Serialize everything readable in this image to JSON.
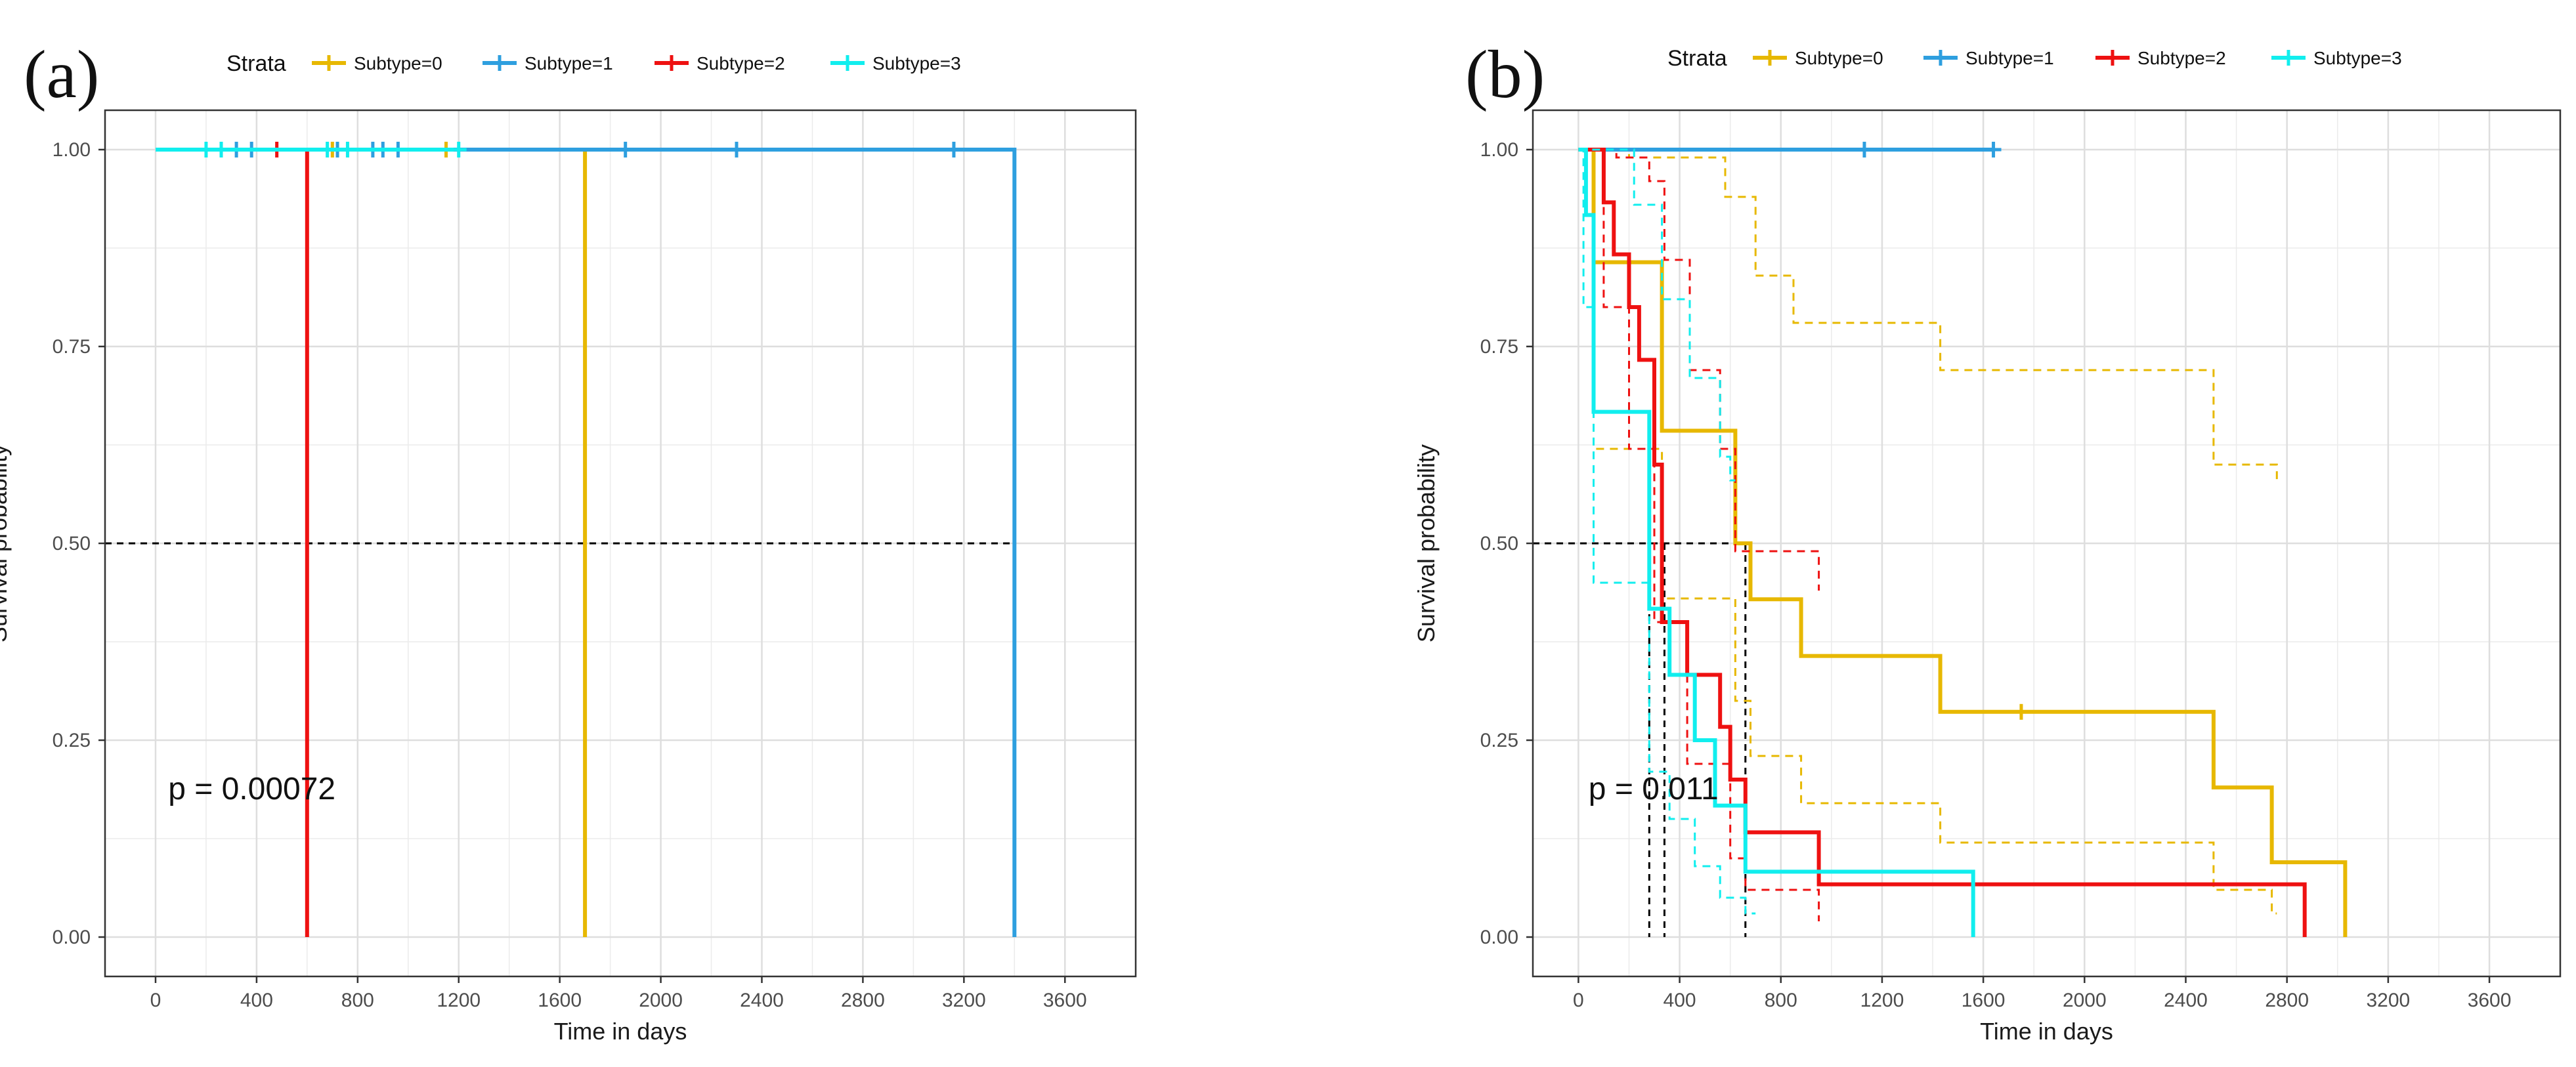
{
  "figure": {
    "panel_labels": [
      "(a)",
      "(b)"
    ]
  },
  "colors": {
    "subtype0": "#E7B800",
    "subtype1": "#2E9FDF",
    "subtype2": "#EE1111",
    "subtype3": "#11EEEE",
    "grid": "#dedede",
    "border": "#333333",
    "median": "#000000"
  },
  "chart_data": [
    {
      "type": "line",
      "panel": "(a)",
      "title": "",
      "xlabel": "Time in days",
      "ylabel": "Survival probability",
      "xlim": [
        -200,
        3880
      ],
      "ylim": [
        -0.05,
        1.05
      ],
      "xticks": [
        0,
        400,
        800,
        1200,
        1600,
        2000,
        2400,
        2800,
        3200,
        3600
      ],
      "xtick_labels": [
        "0",
        "400",
        "800",
        "1200",
        "1600",
        "2000",
        "2400",
        "2800",
        "3200",
        "3600"
      ],
      "yticks": [
        0,
        0.25,
        0.5,
        0.75,
        1
      ],
      "ytick_labels": [
        "0.00",
        "0.25",
        "0.50",
        "0.75",
        "1.00"
      ],
      "legend": {
        "title": "Strata",
        "position": "top",
        "entries": [
          "Subtype=0",
          "Subtype=1",
          "Subtype=2",
          "Subtype=3"
        ]
      },
      "pvalue": "p = 0.00072",
      "median_lines": [
        600,
        1700,
        3400
      ],
      "series": [
        {
          "name": "Subtype=0",
          "color_key": "subtype0",
          "x": [
            0,
            1700,
            1700
          ],
          "y": [
            1,
            1,
            0
          ],
          "censor": [
            {
              "x": 700,
              "y": 1
            },
            {
              "x": 1150,
              "y": 1
            }
          ]
        },
        {
          "name": "Subtype=1",
          "color_key": "subtype1",
          "x": [
            0,
            3400,
            3400
          ],
          "y": [
            1,
            1,
            0
          ],
          "censor": [
            {
              "x": 320,
              "y": 1
            },
            {
              "x": 380,
              "y": 1
            },
            {
              "x": 720,
              "y": 1
            },
            {
              "x": 860,
              "y": 1
            },
            {
              "x": 900,
              "y": 1
            },
            {
              "x": 960,
              "y": 1
            },
            {
              "x": 1860,
              "y": 1
            },
            {
              "x": 2300,
              "y": 1
            },
            {
              "x": 3160,
              "y": 1
            }
          ]
        },
        {
          "name": "Subtype=2",
          "color_key": "subtype2",
          "x": [
            0,
            600,
            600
          ],
          "y": [
            1,
            1,
            0
          ],
          "censor": [
            {
              "x": 480,
              "y": 1
            }
          ]
        },
        {
          "name": "Subtype=3",
          "color_key": "subtype3",
          "x": [
            0,
            1180
          ],
          "y": [
            1,
            1
          ],
          "censor": [
            {
              "x": 200,
              "y": 1
            },
            {
              "x": 260,
              "y": 1
            },
            {
              "x": 680,
              "y": 1
            },
            {
              "x": 760,
              "y": 1
            },
            {
              "x": 1200,
              "y": 1
            }
          ]
        }
      ]
    },
    {
      "type": "line",
      "panel": "(b)",
      "title": "",
      "xlabel": "Time in days",
      "ylabel": "Survival probability",
      "xlim": [
        -180,
        3880
      ],
      "ylim": [
        -0.05,
        1.05
      ],
      "xticks": [
        0,
        400,
        800,
        1200,
        1600,
        2000,
        2400,
        2800,
        3200,
        3600
      ],
      "xtick_labels": [
        "0",
        "400",
        "800",
        "1200",
        "1600",
        "2000",
        "2400",
        "2800",
        "3200",
        "3600"
      ],
      "yticks": [
        0,
        0.25,
        0.5,
        0.75,
        1
      ],
      "ytick_labels": [
        "0.00",
        "0.25",
        "0.50",
        "0.75",
        "1.00"
      ],
      "legend": {
        "title": "Strata",
        "position": "top",
        "entries": [
          "Subtype=0",
          "Subtype=1",
          "Subtype=2",
          "Subtype=3"
        ]
      },
      "pvalue": "p = 0.011",
      "median_lines": [
        280,
        340,
        660
      ],
      "series": [
        {
          "name": "Subtype=0",
          "color_key": "subtype0",
          "times": [
            0,
            60,
            330,
            620,
            680,
            880,
            1430,
            2510,
            2740,
            3030
          ],
          "surv": [
            1,
            0.857,
            0.643,
            0.5,
            0.429,
            0.357,
            0.286,
            0.19,
            0.095,
            0
          ],
          "end": 3030,
          "censor": [
            {
              "x": 1750,
              "y": 0.286
            }
          ]
        },
        {
          "name": "Subtype=0 CI upper",
          "color_key": "subtype0",
          "dashed": true,
          "times": [
            0,
            200,
            580,
            700,
            850,
            1430,
            2510
          ],
          "surv": [
            1,
            0.99,
            0.94,
            0.84,
            0.78,
            0.72,
            0.65
          ],
          "end": 2760,
          "extra": [
            [
              2510,
              0.6
            ],
            [
              2760,
              0.6
            ],
            [
              2760,
              0.58
            ]
          ],
          "censor": []
        },
        {
          "name": "Subtype=0 CI lower",
          "color_key": "subtype0",
          "dashed": true,
          "times": [
            0,
            60,
            330,
            620,
            680,
            880,
            1430,
            2510,
            2740
          ],
          "surv": [
            1,
            0.62,
            0.43,
            0.3,
            0.23,
            0.17,
            0.12,
            0.06,
            0.03
          ],
          "end": 2760,
          "censor": []
        },
        {
          "name": "Subtype=1",
          "color_key": "subtype1",
          "times": [
            0
          ],
          "surv": [
            1
          ],
          "end": 1640,
          "censor": [
            {
              "x": 1130,
              "y": 1
            },
            {
              "x": 1640,
              "y": 1
            }
          ]
        },
        {
          "name": "Subtype=2",
          "color_key": "subtype2",
          "times": [
            0,
            100,
            140,
            200,
            240,
            300,
            330,
            430,
            560,
            600,
            660,
            950,
            2870
          ],
          "surv": [
            1,
            0.933,
            0.867,
            0.8,
            0.733,
            0.6,
            0.4,
            0.333,
            0.267,
            0.2,
            0.133,
            0.067,
            0
          ],
          "end": 2870,
          "censor": []
        },
        {
          "name": "Subtype=2 CI upper",
          "color_key": "subtype2",
          "dashed": true,
          "times": [
            0,
            150,
            280,
            340,
            440,
            560,
            620,
            950
          ],
          "surv": [
            1,
            0.99,
            0.96,
            0.86,
            0.72,
            0.62,
            0.49,
            0.44
          ],
          "end": 950,
          "censor": []
        },
        {
          "name": "Subtype=2 CI lower",
          "color_key": "subtype2",
          "dashed": true,
          "times": [
            0,
            100,
            200,
            300,
            430,
            600,
            660,
            950
          ],
          "surv": [
            1,
            0.8,
            0.62,
            0.4,
            0.22,
            0.1,
            0.06,
            0.02
          ],
          "end": 950,
          "censor": []
        },
        {
          "name": "Subtype=3",
          "color_key": "subtype3",
          "times": [
            0,
            30,
            60,
            280,
            360,
            460,
            540,
            660,
            1560
          ],
          "surv": [
            1,
            0.917,
            0.667,
            0.417,
            0.333,
            0.25,
            0.167,
            0.083,
            0
          ],
          "end": 1560,
          "censor": []
        },
        {
          "name": "Subtype=3 CI upper",
          "color_key": "subtype3",
          "dashed": true,
          "times": [
            0,
            220,
            330,
            440,
            560,
            600
          ],
          "surv": [
            1,
            0.93,
            0.81,
            0.71,
            0.61,
            0.58
          ],
          "end": 620,
          "censor": []
        },
        {
          "name": "Subtype=3 CI lower",
          "color_key": "subtype3",
          "dashed": true,
          "times": [
            0,
            20,
            60,
            280,
            360,
            460,
            560,
            660
          ],
          "surv": [
            1,
            0.8,
            0.45,
            0.21,
            0.15,
            0.09,
            0.05,
            0.03
          ],
          "end": 700,
          "censor": []
        }
      ]
    }
  ]
}
